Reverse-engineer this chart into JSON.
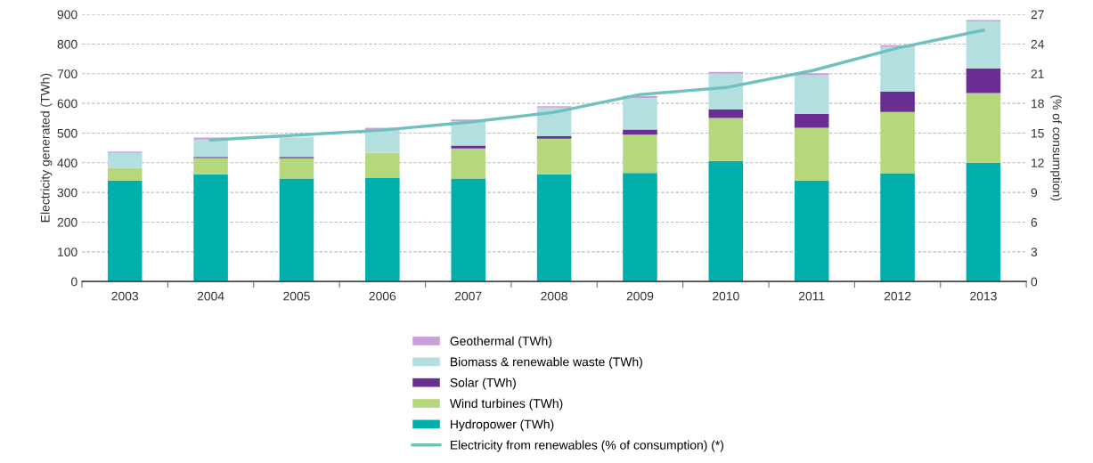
{
  "chart_data": {
    "type": "bar",
    "stacked": true,
    "categories": [
      "2003",
      "2004",
      "2005",
      "2006",
      "2007",
      "2008",
      "2009",
      "2010",
      "2011",
      "2012",
      "2013"
    ],
    "ylabel": "Electricity generated (TWh)",
    "y2label": "(% of consumption)",
    "ylim": [
      0,
      900
    ],
    "yticks": [
      0,
      100,
      200,
      300,
      400,
      500,
      600,
      700,
      800,
      900
    ],
    "y2lim": [
      0,
      27
    ],
    "y2ticks": [
      0,
      3,
      6,
      9,
      12,
      15,
      18,
      21,
      24,
      27
    ],
    "grid": "y",
    "legend": "bottom",
    "series": [
      {
        "name": "Hydropower (TWh)",
        "color": "#00aeab",
        "values": [
          340,
          361,
          347,
          350,
          347,
          361,
          366,
          406,
          340,
          365,
          400
        ]
      },
      {
        "name": "Wind turbines (TWh)",
        "color": "#b6d87d",
        "values": [
          43,
          55,
          68,
          83,
          101,
          120,
          129,
          145,
          178,
          206,
          235
        ]
      },
      {
        "name": "Solar (TWh)",
        "color": "#6a2d91",
        "values": [
          0,
          4,
          5,
          null,
          10,
          9,
          17,
          29,
          47,
          69,
          83
        ]
      },
      {
        "name": "Biomass & renewable waste (TWh)",
        "color": "#b3e0df",
        "values": [
          50,
          58,
          66,
          76,
          82,
          96,
          106,
          120,
          130,
          150,
          158
        ]
      },
      {
        "name": "Geothermal (TWh)",
        "color": "#c9a0dc",
        "values": [
          5,
          7,
          null,
          9,
          6,
          5,
          7,
          6,
          7,
          6,
          5
        ]
      },
      {
        "name": "Electricity from renewables (% of consumption) (*)",
        "color": "#6fc1bf",
        "type": "line",
        "axis": "y2",
        "line_style": "solid",
        "marker": "none",
        "values": [
          null,
          14.3,
          14.8,
          15.3,
          16.1,
          17.1,
          18.9,
          19.6,
          21.3,
          23.6,
          25.4
        ]
      }
    ]
  }
}
